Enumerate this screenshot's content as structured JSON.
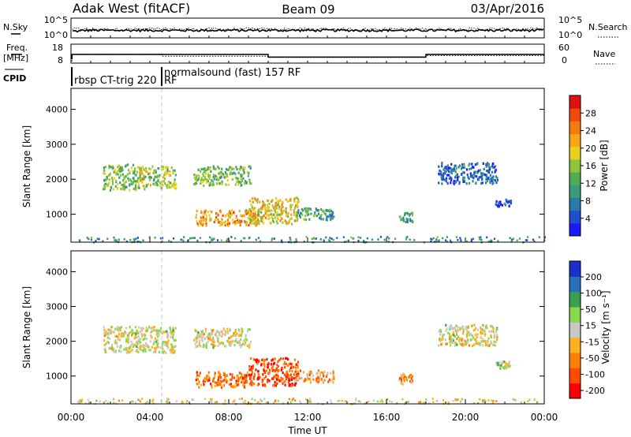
{
  "header": {
    "station": "Adak West (fitACF)",
    "beam": "Beam 09",
    "date": "03/Apr/2016"
  },
  "chart_data": [
    {
      "type": "line",
      "panel": "noise",
      "left_label": "N.Sky",
      "right_label": "N.Search",
      "left_ticks": [
        "10^5",
        "10^0"
      ],
      "right_ticks": [
        "10^5",
        "10^0"
      ]
    },
    {
      "type": "line",
      "panel": "frequency",
      "left_label_line1": "Freq.",
      "left_label_line2": "[MHz]",
      "right_label": "Nave",
      "left_ticks": [
        18,
        8
      ],
      "right_ticks": [
        60,
        0
      ],
      "ylim_left": [
        8,
        18
      ],
      "freq_steps": [
        {
          "t": 0.0,
          "v": 10.4
        },
        {
          "t": 0.05,
          "v": 12.6
        },
        {
          "t": 10.0,
          "v": 11.2
        },
        {
          "t": 18.0,
          "v": 12.6
        },
        {
          "t": 24.0,
          "v": 12.6
        }
      ],
      "nave_steps": [
        {
          "t": 0.0,
          "v": 0
        },
        {
          "t": 0.05,
          "v": 28
        },
        {
          "t": 4.6,
          "v": 22
        },
        {
          "t": 10.0,
          "v": 18
        },
        {
          "t": 18.0,
          "v": 24
        },
        {
          "t": 24.0,
          "v": 24
        }
      ]
    },
    {
      "type": "table",
      "panel": "cpid",
      "label": "CPID",
      "segments": [
        {
          "start": 0.0,
          "text": "rbsp CT-trig 220"
        },
        {
          "start": 4.6,
          "text": "normalsound (fast) 157 RF",
          "second_line": "RF"
        }
      ]
    },
    {
      "type": "heatmap",
      "panel": "power",
      "ylabel": "Slant Range [km]",
      "ylim": [
        200,
        4600
      ],
      "yticks": [
        1000,
        2000,
        3000,
        4000
      ],
      "colorbar_label": "Power [dB]",
      "colorbar_ticks": [
        4,
        8,
        12,
        16,
        20,
        24,
        28
      ],
      "clim": [
        0,
        32
      ]
    },
    {
      "type": "heatmap",
      "panel": "velocity",
      "ylabel": "Slant Range [km]",
      "ylim": [
        200,
        4600
      ],
      "yticks": [
        1000,
        2000,
        3000,
        4000
      ],
      "colorbar_label": "Velocity [m s⁻¹]",
      "colorbar_ticks": [
        "200",
        "100",
        "50",
        "15",
        "-15",
        "-50",
        "-100",
        "-200"
      ],
      "clim": [
        -250,
        250
      ]
    }
  ],
  "xaxis": {
    "label": "Time UT",
    "xlim": [
      0,
      24
    ],
    "ticks": [
      {
        "t": 0,
        "label": "00:00"
      },
      {
        "t": 4,
        "label": "04:00"
      },
      {
        "t": 8,
        "label": "08:00"
      },
      {
        "t": 12,
        "label": "12:00"
      },
      {
        "t": 16,
        "label": "16:00"
      },
      {
        "t": 20,
        "label": "20:00"
      },
      {
        "t": 24,
        "label": "00:00"
      }
    ],
    "cpid_change_time": 4.6
  },
  "colors": {
    "power_scale": [
      "#1a1aff",
      "#1f4fd0",
      "#2a7aa8",
      "#3a9a7a",
      "#4fae55",
      "#8cc43c",
      "#e8d020",
      "#f5a816",
      "#f57a10",
      "#f04a0a",
      "#e01010"
    ],
    "velocity_scale": [
      "#ff0000",
      "#ff4a00",
      "#ff8000",
      "#ffb020",
      "#c8c8c8",
      "#88d850",
      "#3aa050",
      "#2a70c0",
      "#1a30c8"
    ]
  },
  "echo_regions": {
    "power": [
      {
        "t0": 1.6,
        "t1": 3.3,
        "r0": 1700,
        "r1": 2450,
        "level": 0.45
      },
      {
        "t0": 3.3,
        "t1": 5.3,
        "r0": 1750,
        "r1": 2400,
        "level": 0.5
      },
      {
        "t0": 6.2,
        "t1": 9.1,
        "r0": 1850,
        "r1": 2400,
        "level": 0.45
      },
      {
        "t0": 6.3,
        "t1": 9.5,
        "r0": 700,
        "r1": 1150,
        "level": 0.7
      },
      {
        "t0": 9.0,
        "t1": 11.5,
        "r0": 750,
        "r1": 1500,
        "level": 0.6
      },
      {
        "t0": 11.3,
        "t1": 13.3,
        "r0": 850,
        "r1": 1200,
        "level": 0.35
      },
      {
        "t0": 16.6,
        "t1": 17.3,
        "r0": 800,
        "r1": 1100,
        "level": 0.35
      },
      {
        "t0": 18.6,
        "t1": 21.6,
        "r0": 1900,
        "r1": 2500,
        "level": 0.2
      },
      {
        "t0": 21.5,
        "t1": 22.3,
        "r0": 1250,
        "r1": 1450,
        "level": 0.15
      },
      {
        "t0": 0.3,
        "t1": 24.0,
        "r0": 220,
        "r1": 380,
        "level": 0.3
      }
    ],
    "velocity": [
      {
        "t0": 1.6,
        "t1": 5.3,
        "r0": 1700,
        "r1": 2450,
        "level": 0.5
      },
      {
        "t0": 6.2,
        "t1": 9.1,
        "r0": 1850,
        "r1": 2400,
        "level": 0.5
      },
      {
        "t0": 6.3,
        "t1": 9.0,
        "r0": 700,
        "r1": 1150,
        "level": 0.25
      },
      {
        "t0": 9.0,
        "t1": 11.5,
        "r0": 750,
        "r1": 1550,
        "level": 0.15
      },
      {
        "t0": 11.3,
        "t1": 13.3,
        "r0": 850,
        "r1": 1200,
        "level": 0.35
      },
      {
        "t0": 16.6,
        "t1": 17.3,
        "r0": 800,
        "r1": 1100,
        "level": 0.3
      },
      {
        "t0": 18.6,
        "t1": 21.6,
        "r0": 1900,
        "r1": 2500,
        "level": 0.5
      },
      {
        "t0": 21.5,
        "t1": 22.3,
        "r0": 1250,
        "r1": 1450,
        "level": 0.55
      },
      {
        "t0": 0.3,
        "t1": 24.0,
        "r0": 220,
        "r1": 380,
        "level": 0.45
      }
    ]
  }
}
